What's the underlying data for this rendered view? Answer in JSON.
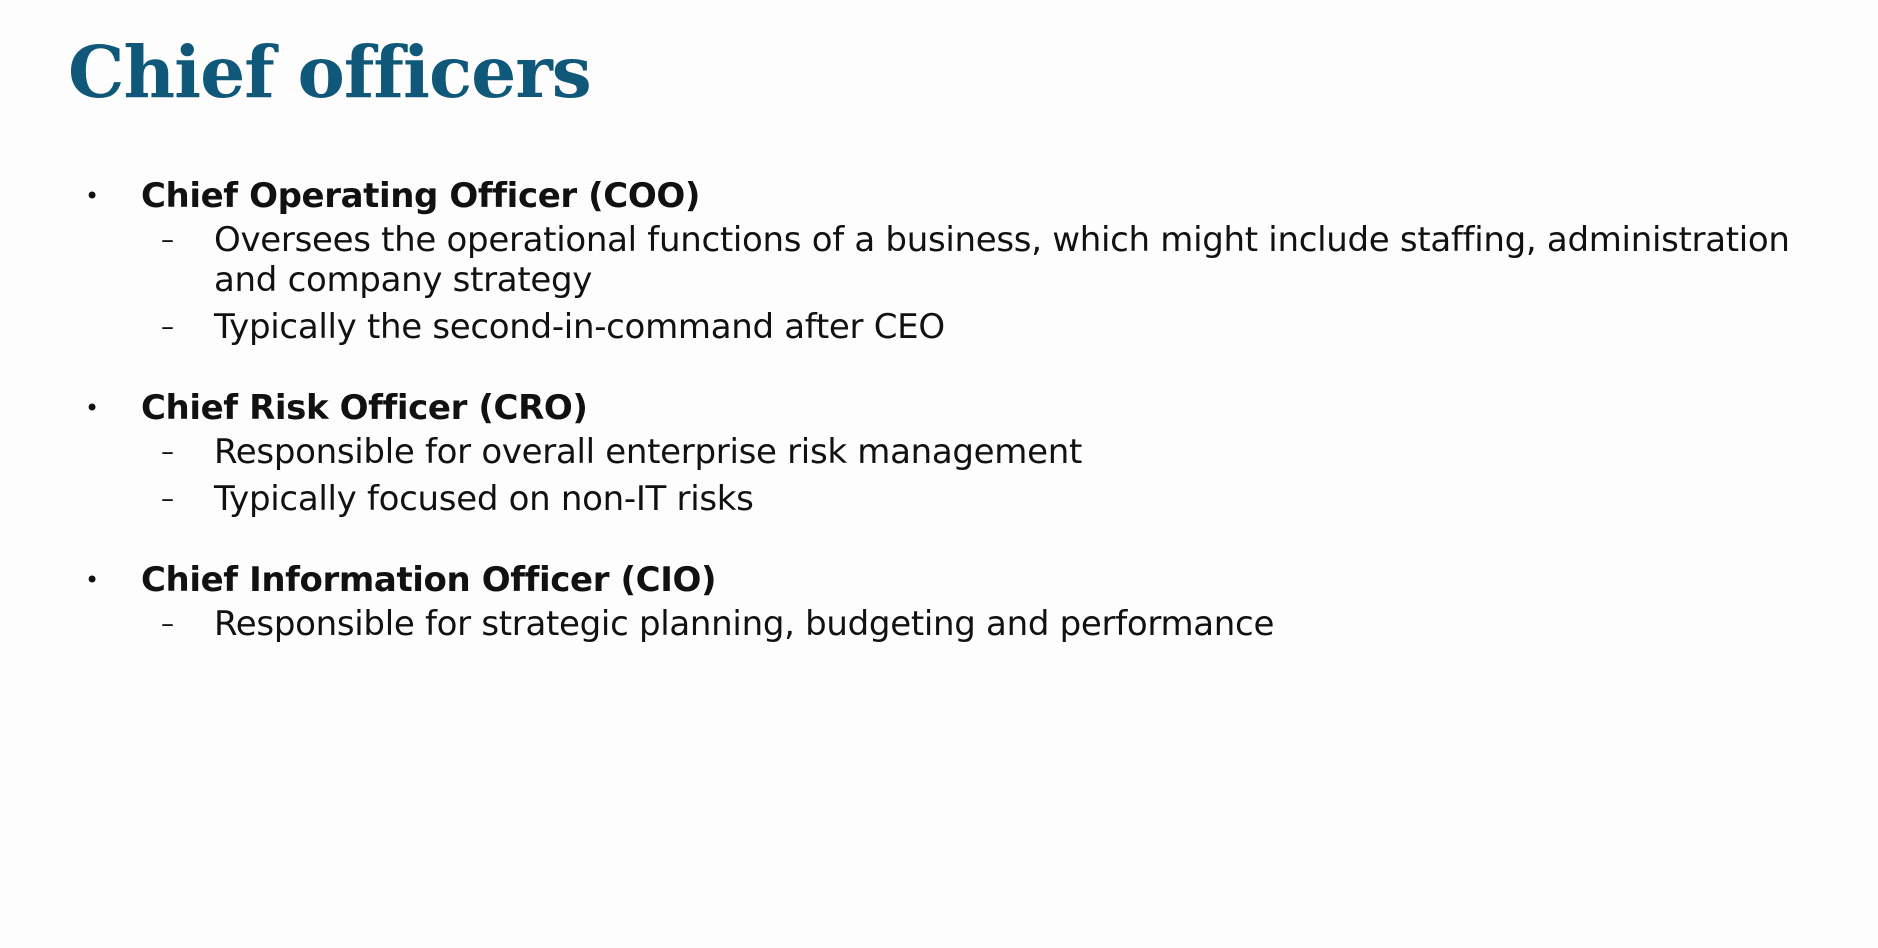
{
  "slide": {
    "title": "Chief officers",
    "officers": [
      {
        "name": "Chief Operating Officer (COO)",
        "points": [
          "Oversees the operational functions of a business, which might include staffing, administration and company strategy",
          "Typically the second-in-command after CEO"
        ]
      },
      {
        "name": "Chief Risk Officer (CRO)",
        "points": [
          "Responsible for overall enterprise risk management",
          "Typically focused on non-IT risks"
        ]
      },
      {
        "name": "Chief Information Officer (CIO)",
        "points": [
          "Responsible for strategic planning, budgeting and performance"
        ]
      }
    ],
    "bullet_glyph": "•",
    "sub_bullet_glyph": "–",
    "colors": {
      "title": "#10587a",
      "text": "#111111",
      "background": "#fdfdfd"
    }
  }
}
